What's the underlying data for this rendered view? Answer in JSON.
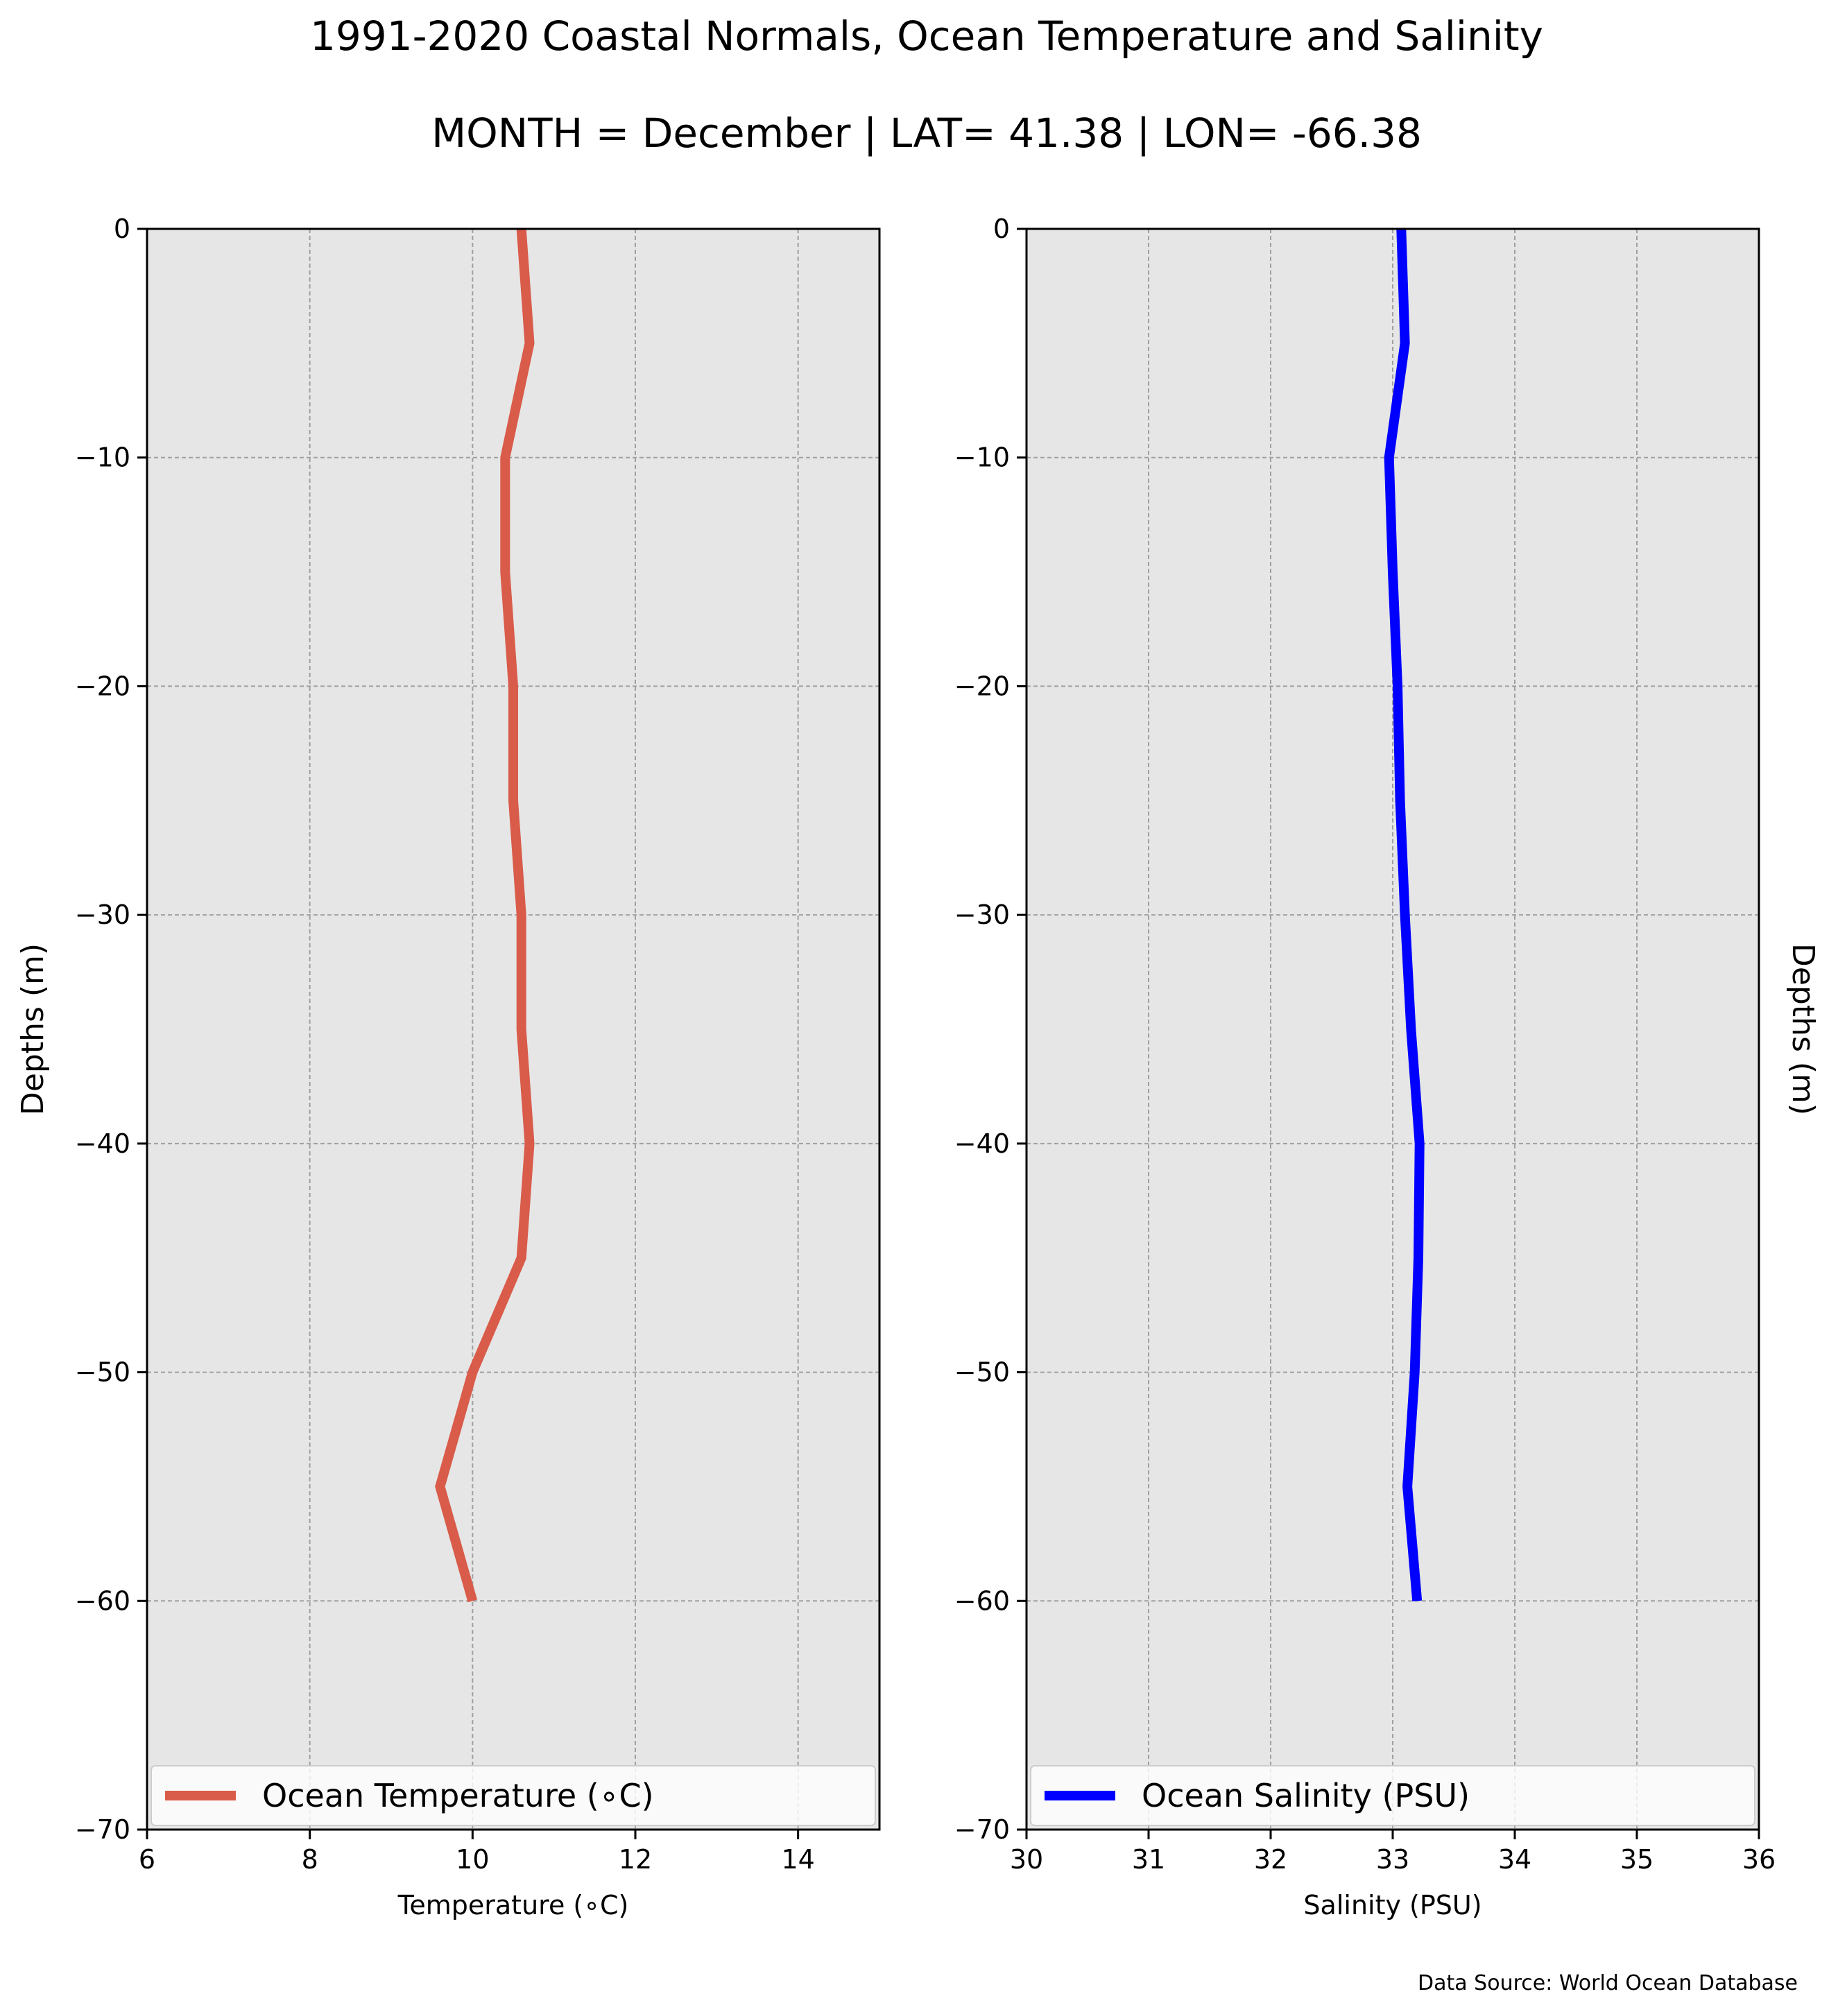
{
  "title": "1991-2020 Coastal Normals, Ocean Temperature and Salinity",
  "subtitle": "MONTH = December | LAT= 41.38 | LON= -66.38",
  "footer": "Data Source: World Ocean Database",
  "chart_data": [
    {
      "type": "line",
      "orientation": "vertical-profile",
      "xlabel": "Temperature ($^\\circ$C)",
      "xlabel_display": "Temperature (∘C)",
      "ylabel": "Depths (m)",
      "xlim": [
        6,
        15
      ],
      "ylim": [
        -70,
        0
      ],
      "xticks": [
        6,
        8,
        10,
        12,
        14
      ],
      "yticks": [
        0,
        -10,
        -20,
        -30,
        -40,
        -50,
        -60,
        -70
      ],
      "grid": true,
      "background": "#e6e6e6",
      "legend_position": "lower-center",
      "series": [
        {
          "name": "Ocean Temperature (∘C)",
          "color": "#d95b4a",
          "x": [
            10.6,
            10.7,
            10.4,
            10.4,
            10.5,
            10.5,
            10.6,
            10.6,
            10.7,
            10.6,
            10.0,
            9.6,
            10.0
          ],
          "y": [
            0,
            -5,
            -10,
            -15,
            -20,
            -25,
            -30,
            -35,
            -40,
            -45,
            -50,
            -55,
            -60
          ]
        }
      ]
    },
    {
      "type": "line",
      "orientation": "vertical-profile",
      "xlabel": "Salinity (PSU)",
      "ylabel": "Depths (m)",
      "ylabel_position": "right",
      "xlim": [
        30,
        36
      ],
      "ylim": [
        -70,
        0
      ],
      "xticks": [
        30,
        31,
        32,
        33,
        34,
        35,
        36
      ],
      "yticks": [
        0,
        -10,
        -20,
        -30,
        -40,
        -50,
        -60,
        -70
      ],
      "grid": true,
      "background": "#e6e6e6",
      "legend_position": "lower-center",
      "series": [
        {
          "name": "Ocean Salinity (PSU)",
          "color": "#0000ff",
          "x": [
            33.07,
            33.1,
            32.97,
            33.0,
            33.04,
            33.06,
            33.1,
            33.15,
            33.22,
            33.21,
            33.18,
            33.12,
            33.2
          ],
          "y": [
            0,
            -5,
            -10,
            -15,
            -20,
            -25,
            -30,
            -35,
            -40,
            -45,
            -50,
            -55,
            -60
          ]
        }
      ]
    }
  ]
}
